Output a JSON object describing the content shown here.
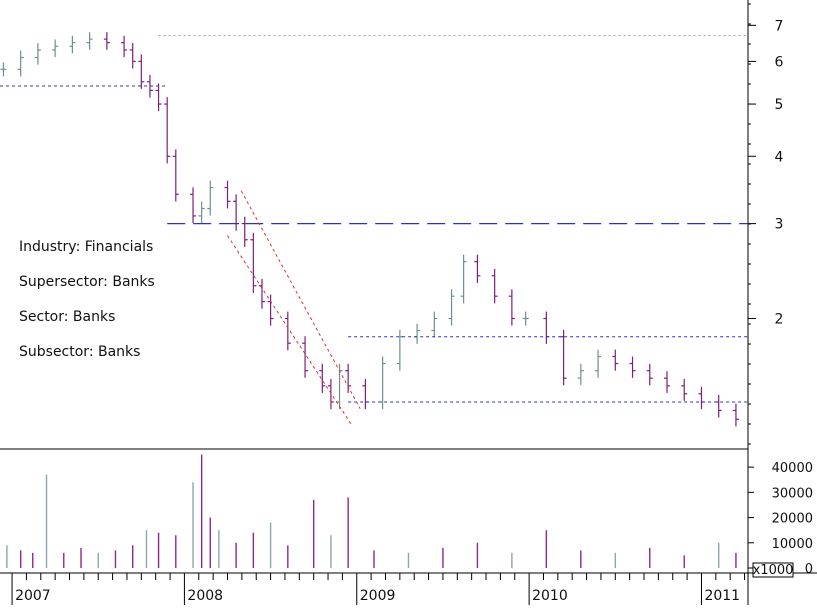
{
  "annotations": {
    "industry": "Industry: Financials",
    "supersector": "Supersector: Banks",
    "sector": "Sector: Banks",
    "subsector": "Subsector: Banks"
  },
  "colors": {
    "price_bar": "#7a1f7a",
    "price_bar_alt": "#6f8f8f",
    "volume_bar": "#8a2a8a",
    "volume_bar_alt": "#8fa6a6",
    "support_line": "#3030c0",
    "channel_line": "#e03030",
    "peak_line": "#a0a0a0",
    "axis": "#000000"
  },
  "chart_data": [
    {
      "type": "ohlc",
      "scale": "log",
      "y_ticks": [
        7,
        6,
        5,
        4,
        3,
        2
      ],
      "ylim": [
        1.15,
        7.8
      ],
      "xlim": [
        2006.93,
        2011.27
      ],
      "x_ticks": [
        "2007",
        "2008",
        "2009",
        "2010",
        "2011"
      ],
      "x_tick_values": [
        2007.0,
        2008.0,
        2009.0,
        2010.0,
        2011.0
      ],
      "series": [
        {
          "x": [
            2006.95,
            2007.05,
            2007.15,
            2007.25,
            2007.35,
            2007.45,
            2007.55,
            2007.65,
            2007.7,
            2007.75,
            2007.8,
            2007.85,
            2007.9,
            2007.95,
            2008.05,
            2008.1,
            2008.15,
            2008.25,
            2008.3,
            2008.35,
            2008.4,
            2008.45,
            2008.5,
            2008.6,
            2008.7,
            2008.8,
            2008.85,
            2008.9,
            2008.95,
            2009.05,
            2009.15,
            2009.25,
            2009.35,
            2009.45,
            2009.55,
            2009.62,
            2009.7,
            2009.8,
            2009.9,
            2009.98,
            2010.1,
            2010.2,
            2010.3,
            2010.4,
            2010.5,
            2010.6,
            2010.7,
            2010.8,
            2010.9,
            2011.0,
            2011.1,
            2011.2
          ],
          "y": [
            5.8,
            6.1,
            6.3,
            6.4,
            6.5,
            6.6,
            6.5,
            6.3,
            6.0,
            5.5,
            5.3,
            5.0,
            4.0,
            3.4,
            3.1,
            3.2,
            3.5,
            3.3,
            3.0,
            2.8,
            2.3,
            2.15,
            2.0,
            1.8,
            1.6,
            1.5,
            1.4,
            1.6,
            1.5,
            1.4,
            1.65,
            1.85,
            1.9,
            2.0,
            2.2,
            2.55,
            2.4,
            2.2,
            2.0,
            2.0,
            1.85,
            1.55,
            1.6,
            1.7,
            1.65,
            1.6,
            1.55,
            1.5,
            1.45,
            1.4,
            1.35,
            1.3
          ]
        }
      ],
      "reference_lines": [
        {
          "style": "long-dash",
          "value": 3.0,
          "x_from": 2007.9
        },
        {
          "style": "dotted",
          "value": 1.85,
          "x_from": 2008.95
        },
        {
          "style": "dotted",
          "value": 1.4,
          "x_from": 2008.95
        },
        {
          "style": "dotted",
          "value": 5.4,
          "x_to": 2007.9
        },
        {
          "style": "dotted-grey",
          "value": 6.7,
          "x_from": 2007.85
        }
      ]
    },
    {
      "type": "bar",
      "unit_label": "x1000",
      "y_ticks": [
        40000,
        30000,
        20000,
        10000,
        0
      ],
      "ylim": [
        0,
        46000
      ],
      "x": [
        2006.97,
        2007.05,
        2007.12,
        2007.2,
        2007.3,
        2007.4,
        2007.5,
        2007.6,
        2007.7,
        2007.78,
        2007.85,
        2007.95,
        2008.05,
        2008.1,
        2008.15,
        2008.2,
        2008.3,
        2008.4,
        2008.5,
        2008.6,
        2008.75,
        2008.85,
        2008.95,
        2009.1,
        2009.3,
        2009.5,
        2009.7,
        2009.9,
        2010.1,
        2010.3,
        2010.5,
        2010.7,
        2010.9,
        2011.1,
        2011.2
      ],
      "values": [
        9000,
        7000,
        6000,
        37000,
        6000,
        8000,
        6000,
        7000,
        9000,
        15000,
        14000,
        13000,
        34000,
        45000,
        20000,
        15000,
        10000,
        14000,
        18000,
        9000,
        27000,
        13000,
        28000,
        7000,
        6000,
        8000,
        10000,
        6000,
        15000,
        7000,
        6000,
        8000,
        5000,
        10000,
        6000
      ]
    }
  ]
}
